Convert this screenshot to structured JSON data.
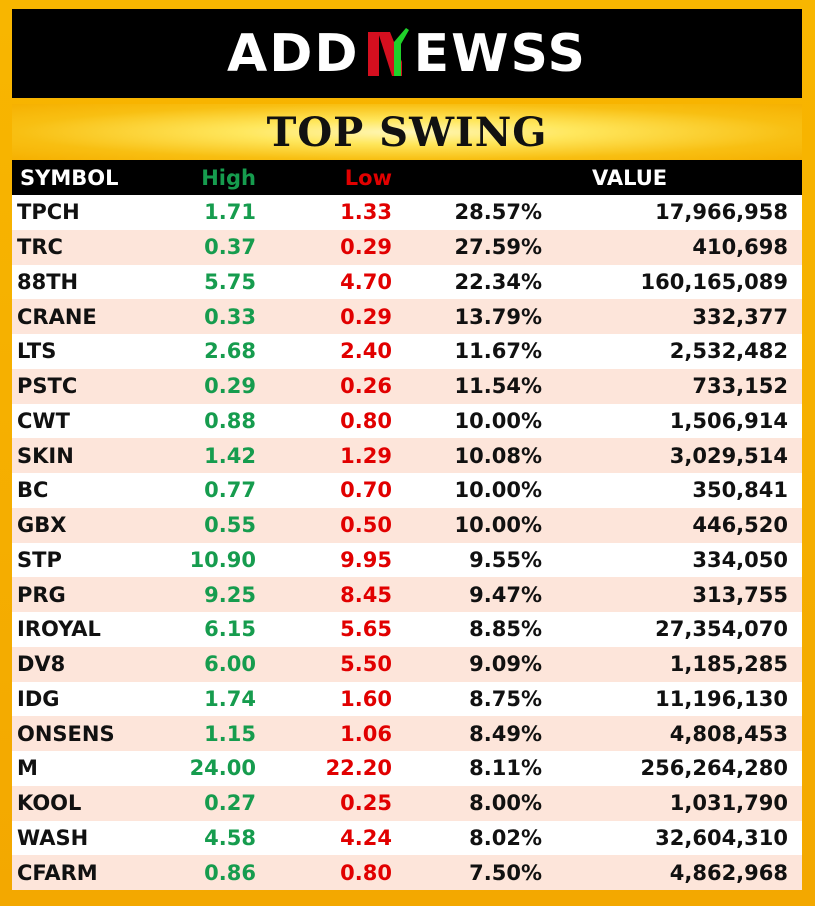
{
  "brand": {
    "left": "ADD",
    "right": "EWSS",
    "logo_colors": {
      "white": "#ffffff",
      "green": "#20d12a",
      "red": "#d40f1f",
      "black": "#000000"
    }
  },
  "title": "TOP SWING",
  "table": {
    "headers": {
      "symbol": "SYMBOL",
      "high": "High",
      "low": "Low",
      "change": "",
      "value": "VALUE"
    },
    "rows": [
      {
        "symbol": "TPCH",
        "high": "1.71",
        "low": "1.33",
        "change": "28.57%",
        "value": "17,966,958"
      },
      {
        "symbol": "TRC",
        "high": "0.37",
        "low": "0.29",
        "change": "27.59%",
        "value": "410,698"
      },
      {
        "symbol": "88TH",
        "high": "5.75",
        "low": "4.70",
        "change": "22.34%",
        "value": "160,165,089"
      },
      {
        "symbol": "CRANE",
        "high": "0.33",
        "low": "0.29",
        "change": "13.79%",
        "value": "332,377"
      },
      {
        "symbol": "LTS",
        "high": "2.68",
        "low": "2.40",
        "change": "11.67%",
        "value": "2,532,482"
      },
      {
        "symbol": "PSTC",
        "high": "0.29",
        "low": "0.26",
        "change": "11.54%",
        "value": "733,152"
      },
      {
        "symbol": "CWT",
        "high": "0.88",
        "low": "0.80",
        "change": "10.00%",
        "value": "1,506,914"
      },
      {
        "symbol": "SKIN",
        "high": "1.42",
        "low": "1.29",
        "change": "10.08%",
        "value": "3,029,514"
      },
      {
        "symbol": "BC",
        "high": "0.77",
        "low": "0.70",
        "change": "10.00%",
        "value": "350,841"
      },
      {
        "symbol": "GBX",
        "high": "0.55",
        "low": "0.50",
        "change": "10.00%",
        "value": "446,520"
      },
      {
        "symbol": "STP",
        "high": "10.90",
        "low": "9.95",
        "change": "9.55%",
        "value": "334,050"
      },
      {
        "symbol": "PRG",
        "high": "9.25",
        "low": "8.45",
        "change": "9.47%",
        "value": "313,755"
      },
      {
        "symbol": "IROYAL",
        "high": "6.15",
        "low": "5.65",
        "change": "8.85%",
        "value": "27,354,070"
      },
      {
        "symbol": "DV8",
        "high": "6.00",
        "low": "5.50",
        "change": "9.09%",
        "value": "1,185,285"
      },
      {
        "symbol": "IDG",
        "high": "1.74",
        "low": "1.60",
        "change": "8.75%",
        "value": "11,196,130"
      },
      {
        "symbol": "ONSENS",
        "high": "1.15",
        "low": "1.06",
        "change": "8.49%",
        "value": "4,808,453"
      },
      {
        "symbol": "M",
        "high": "24.00",
        "low": "22.20",
        "change": "8.11%",
        "value": "256,264,280"
      },
      {
        "symbol": "KOOL",
        "high": "0.27",
        "low": "0.25",
        "change": "8.00%",
        "value": "1,031,790"
      },
      {
        "symbol": "WASH",
        "high": "4.58",
        "low": "4.24",
        "change": "8.02%",
        "value": "32,604,310"
      },
      {
        "symbol": "CFARM",
        "high": "0.86",
        "low": "0.80",
        "change": "7.50%",
        "value": "4,862,968"
      }
    ]
  }
}
